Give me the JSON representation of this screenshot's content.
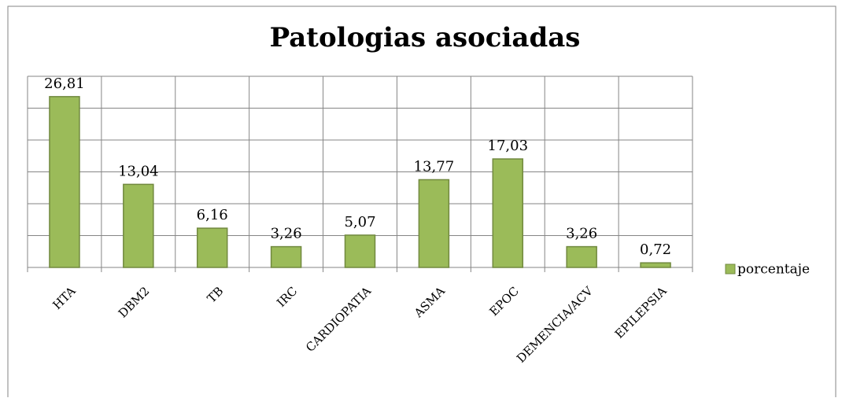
{
  "chart_data": {
    "type": "bar",
    "title": "Patologias asociadas",
    "categories": [
      "HTA",
      "DBM2",
      "TB",
      "IRC",
      "CARDIOPATIA",
      "ASMA",
      "EPOC",
      "DEMENCIA/ACV",
      "EPILEPSIA"
    ],
    "series": [
      {
        "name": "porcentaje",
        "color": "#9bbb59",
        "values": [
          26.81,
          13.04,
          6.16,
          3.26,
          5.07,
          13.77,
          17.03,
          3.26,
          0.72
        ],
        "value_labels": [
          "26,81",
          "13,04",
          "6,16",
          "3,26",
          "5,07",
          "13,77",
          "17,03",
          "3,26",
          "0,72"
        ]
      }
    ],
    "ylim": [
      0,
      30
    ],
    "yticks": [
      0,
      5,
      10,
      15,
      20,
      25,
      30
    ],
    "grid": true,
    "legend": "right"
  }
}
